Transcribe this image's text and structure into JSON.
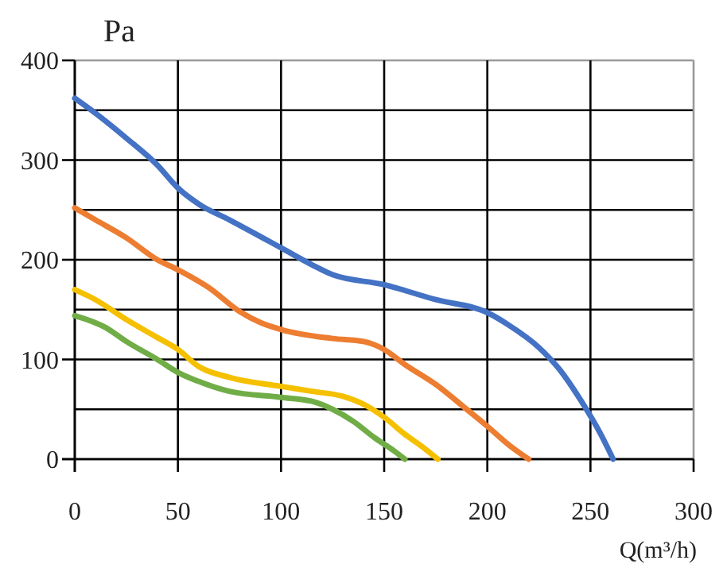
{
  "chart_data": {
    "type": "line",
    "xlabel": "Q(m³/h)",
    "ylabel": "Pa",
    "xlim": [
      0,
      300
    ],
    "ylim": [
      0,
      400
    ],
    "xticks": [
      0,
      50,
      100,
      150,
      200,
      250,
      300
    ],
    "yticks": [
      0,
      100,
      200,
      300,
      400
    ],
    "grid": true,
    "marker": "none",
    "line_style": "solid",
    "series": [
      {
        "color": "#4472c4",
        "x": [
          0,
          10,
          25,
          40,
          50,
          60,
          75,
          100,
          115,
          125,
          150,
          175,
          200,
          210,
          225,
          235,
          245,
          255,
          261
        ],
        "values": [
          362,
          347,
          322,
          295,
          272,
          256,
          240,
          212,
          195,
          185,
          175,
          160,
          147,
          135,
          112,
          90,
          60,
          25,
          0
        ]
      },
      {
        "color": "#ed7d31",
        "x": [
          0,
          10,
          25,
          40,
          50,
          65,
          80,
          90,
          100,
          125,
          140,
          150,
          160,
          175,
          190,
          200,
          210,
          220
        ],
        "values": [
          252,
          240,
          222,
          200,
          190,
          172,
          148,
          137,
          130,
          121,
          118,
          110,
          95,
          75,
          50,
          33,
          15,
          0
        ]
      },
      {
        "color": "#f5c000",
        "x": [
          0,
          10,
          25,
          40,
          50,
          60,
          75,
          100,
          115,
          130,
          140,
          150,
          160,
          170,
          176
        ],
        "values": [
          170,
          160,
          140,
          122,
          110,
          93,
          82,
          73,
          68,
          63,
          55,
          42,
          25,
          10,
          0
        ]
      },
      {
        "color": "#70ad47",
        "x": [
          0,
          15,
          25,
          40,
          50,
          60,
          75,
          100,
          115,
          125,
          135,
          145,
          155,
          160
        ],
        "values": [
          144,
          132,
          118,
          100,
          87,
          78,
          68,
          62,
          58,
          50,
          38,
          22,
          8,
          0
        ]
      }
    ]
  }
}
